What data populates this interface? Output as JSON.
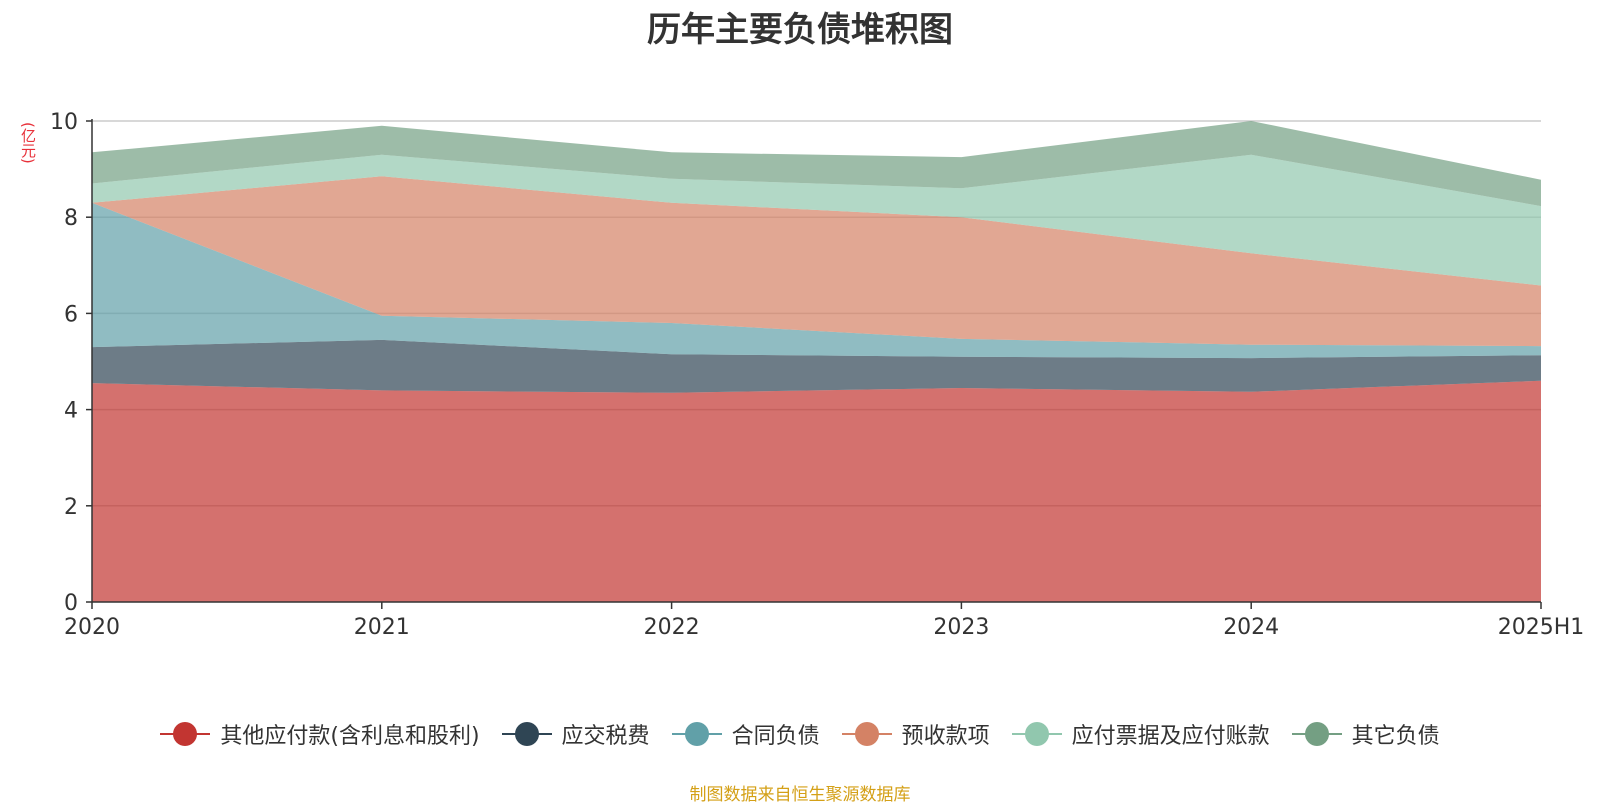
{
  "chart_data": {
    "type": "area",
    "stacked": true,
    "title": "历年主要负债堆积图",
    "ylabel": "(亿元)",
    "xlabel": "",
    "x": [
      "2020",
      "2021",
      "2022",
      "2023",
      "2024",
      "2025H1"
    ],
    "ylim": [
      0,
      10
    ],
    "yticks": [
      0,
      2,
      4,
      6,
      8,
      10
    ],
    "grid": true,
    "legend_position": "bottom",
    "series": [
      {
        "name": "其他应付款(含利息和股利)",
        "color": "#c23531",
        "values": [
          4.55,
          4.4,
          4.35,
          4.45,
          4.37,
          4.6
        ]
      },
      {
        "name": "应交税费",
        "color": "#2f4554",
        "values": [
          0.75,
          1.05,
          0.8,
          0.65,
          0.7,
          0.53
        ]
      },
      {
        "name": "合同负债",
        "color": "#61a0a8",
        "values": [
          3.0,
          0.5,
          0.65,
          0.37,
          0.28,
          0.19
        ]
      },
      {
        "name": "预收款项",
        "color": "#d48265",
        "values": [
          0.0,
          2.9,
          2.5,
          2.53,
          1.9,
          1.26
        ]
      },
      {
        "name": "应付票据及应付账款",
        "color": "#91c7ae",
        "values": [
          0.4,
          0.45,
          0.5,
          0.6,
          2.05,
          1.65
        ]
      },
      {
        "name": "其它负债",
        "color": "#749f83",
        "values": [
          0.65,
          0.6,
          0.55,
          0.65,
          0.7,
          0.55
        ]
      }
    ]
  },
  "source_text": "制图数据来自恒生聚源数据库"
}
